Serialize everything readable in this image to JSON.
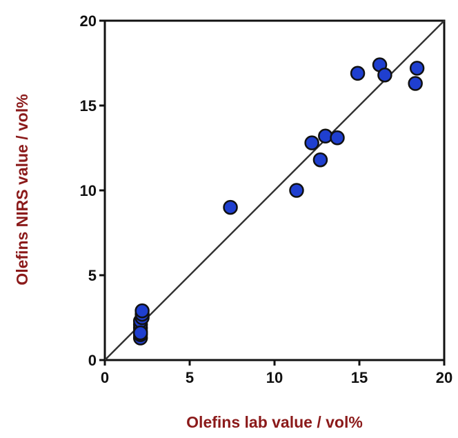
{
  "chart_data": {
    "type": "scatter",
    "title": "",
    "xlabel": "Olefins lab value / vol%",
    "ylabel": "Olefins NIRS value / vol%",
    "xlim": [
      0,
      20
    ],
    "ylim": [
      0,
      20
    ],
    "x_ticks": [
      "0",
      "5",
      "10",
      "15",
      "20"
    ],
    "y_ticks": [
      "0",
      "5",
      "10",
      "15",
      "20"
    ],
    "grid": false,
    "reference_line": "y = x",
    "colors": {
      "points": "#1f3fcf",
      "point_outline": "#111111",
      "axis_title": "#8b1a1a",
      "axes": "#111111"
    },
    "points": [
      {
        "x": 2.1,
        "y": 1.3
      },
      {
        "x": 2.1,
        "y": 1.5
      },
      {
        "x": 2.1,
        "y": 1.7
      },
      {
        "x": 2.1,
        "y": 1.9
      },
      {
        "x": 2.1,
        "y": 2.1
      },
      {
        "x": 2.1,
        "y": 2.3
      },
      {
        "x": 2.2,
        "y": 2.5
      },
      {
        "x": 2.2,
        "y": 2.7
      },
      {
        "x": 2.2,
        "y": 2.9
      },
      {
        "x": 2.1,
        "y": 1.6
      },
      {
        "x": 7.4,
        "y": 9.0
      },
      {
        "x": 11.3,
        "y": 10.0
      },
      {
        "x": 12.2,
        "y": 12.8
      },
      {
        "x": 12.7,
        "y": 11.8
      },
      {
        "x": 13.0,
        "y": 13.2
      },
      {
        "x": 13.7,
        "y": 13.1
      },
      {
        "x": 14.9,
        "y": 16.9
      },
      {
        "x": 16.2,
        "y": 17.4
      },
      {
        "x": 16.5,
        "y": 16.8
      },
      {
        "x": 18.3,
        "y": 16.3
      },
      {
        "x": 18.4,
        "y": 17.2
      }
    ]
  }
}
